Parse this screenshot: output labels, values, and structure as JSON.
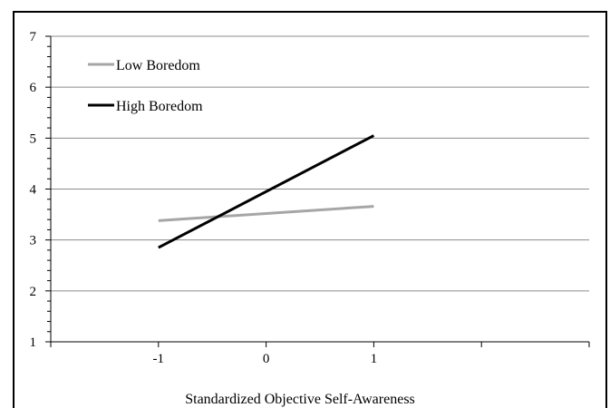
{
  "chart_data": {
    "type": "line",
    "title": "",
    "xlabel": "Standardized Objective Self-Awareness",
    "ylabel": "",
    "x": [
      -1,
      1
    ],
    "xticks": [
      "-1",
      "0",
      "1"
    ],
    "xlim": [
      -2,
      3
    ],
    "ylim": [
      1,
      7
    ],
    "yticks": [
      "1",
      "2",
      "3",
      "4",
      "5",
      "6",
      "7"
    ],
    "grid": true,
    "legend": "top-left",
    "series": [
      {
        "name": "Low Boredom",
        "values": [
          3.38,
          3.66
        ],
        "color": "#a6a6a6"
      },
      {
        "name": "High Boredom",
        "values": [
          2.85,
          5.05
        ],
        "color": "#000000"
      }
    ]
  }
}
